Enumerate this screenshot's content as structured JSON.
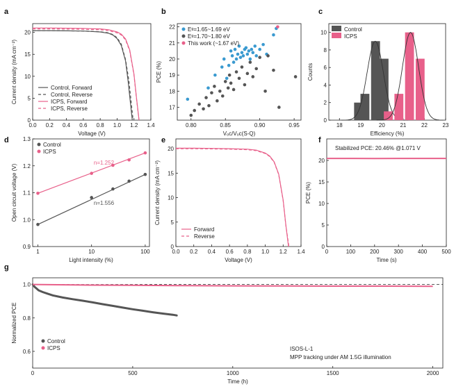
{
  "colors": {
    "control": "#555555",
    "icps": "#e8608a",
    "blue": "#3a9ad0",
    "gauss": "#333333"
  },
  "chart_data": [
    {
      "type": "line",
      "label": "a",
      "xlabel": "Voltage (V)",
      "ylabel": "Current density (mA cm⁻²)",
      "xlim": [
        0,
        1.4
      ],
      "ylim": [
        0,
        22
      ],
      "xticks": [
        "0.0",
        "0.2",
        "0.4",
        "0.6",
        "0.8",
        "1.0",
        "1.2",
        "1.4"
      ],
      "yticks": [
        "0",
        "5",
        "10",
        "15",
        "20"
      ],
      "legend": "bottom-left",
      "series": [
        {
          "name": "Control, Forward",
          "color": "control",
          "dash": false,
          "x": [
            0,
            0.2,
            0.4,
            0.6,
            0.8,
            0.9,
            0.95,
            1.0,
            1.05,
            1.1,
            1.13,
            1.16,
            1.18
          ],
          "y": [
            20.4,
            20.4,
            20.35,
            20.3,
            20.1,
            19.8,
            19.4,
            18.6,
            17.0,
            13.5,
            9.0,
            3.5,
            0
          ]
        },
        {
          "name": "Control, Reverse",
          "color": "control",
          "dash": true,
          "x": [
            0,
            0.2,
            0.4,
            0.6,
            0.8,
            0.9,
            0.95,
            1.0,
            1.05,
            1.1,
            1.14,
            1.17,
            1.19
          ],
          "y": [
            20.4,
            20.4,
            20.35,
            20.3,
            20.15,
            19.9,
            19.5,
            18.8,
            17.3,
            13.8,
            9.0,
            3.5,
            0
          ]
        },
        {
          "name": "ICPS, Forward",
          "color": "icps",
          "dash": false,
          "x": [
            0,
            0.2,
            0.4,
            0.6,
            0.8,
            0.9,
            1.0,
            1.05,
            1.1,
            1.15,
            1.2,
            1.23,
            1.26
          ],
          "y": [
            21.0,
            21.0,
            20.95,
            20.9,
            20.8,
            20.6,
            20.1,
            19.6,
            18.5,
            16.0,
            10.5,
            5.0,
            0
          ]
        },
        {
          "name": "ICPS, Reverse",
          "color": "icps",
          "dash": true,
          "x": [
            0,
            0.2,
            0.4,
            0.6,
            0.8,
            0.9,
            1.0,
            1.05,
            1.1,
            1.15,
            1.2,
            1.23,
            1.26
          ],
          "y": [
            20.8,
            20.8,
            20.75,
            20.7,
            20.6,
            20.4,
            19.9,
            19.4,
            18.3,
            15.8,
            10.3,
            4.8,
            0
          ]
        }
      ]
    },
    {
      "type": "scatter",
      "label": "b",
      "xlabel": "Vₒc/Vₒc(S-Q)",
      "ylabel": "PCE (%)",
      "xlim": [
        0.78,
        0.96
      ],
      "ylim": [
        16.2,
        22.2
      ],
      "xticks": [
        "0.80",
        "0.85",
        "0.90",
        "0.95"
      ],
      "xtickvals": [
        0.8,
        0.85,
        0.9,
        0.95
      ],
      "yticks": [
        "17",
        "18",
        "19",
        "20",
        "21",
        "22"
      ],
      "legend": "top-left",
      "series": [
        {
          "name": "Eᵍ=1.65~1.69 eV",
          "color": "blue",
          "x": [
            0.795,
            0.825,
            0.835,
            0.845,
            0.848,
            0.852,
            0.855,
            0.858,
            0.86,
            0.862,
            0.864,
            0.866,
            0.868,
            0.87,
            0.872,
            0.874,
            0.876,
            0.878,
            0.88,
            0.882,
            0.884,
            0.886,
            0.888,
            0.89,
            0.893,
            0.895,
            0.9,
            0.905,
            0.91,
            0.92,
            0.924
          ],
          "y": [
            17.5,
            18.2,
            19.0,
            19.5,
            20.0,
            18.8,
            19.6,
            20.5,
            20.2,
            19.8,
            20.6,
            20.0,
            20.3,
            20.8,
            20.1,
            20.4,
            20.2,
            20.6,
            20.7,
            20.3,
            20.5,
            20.0,
            20.6,
            20.4,
            20.8,
            20.2,
            20.6,
            20.9,
            20.3,
            21.5,
            21.9
          ]
        },
        {
          "name": "Eᵍ=1.70~1.80 eV",
          "color": "control",
          "x": [
            0.8,
            0.805,
            0.812,
            0.818,
            0.822,
            0.826,
            0.83,
            0.834,
            0.838,
            0.842,
            0.846,
            0.85,
            0.854,
            0.856,
            0.858,
            0.862,
            0.866,
            0.87,
            0.874,
            0.878,
            0.882,
            0.886,
            0.89,
            0.895,
            0.9,
            0.908,
            0.912,
            0.92,
            0.928,
            0.952
          ],
          "y": [
            16.5,
            16.8,
            17.2,
            16.9,
            17.6,
            17.1,
            17.9,
            18.3,
            17.4,
            18.0,
            17.7,
            18.6,
            18.2,
            19.0,
            18.5,
            18.1,
            19.2,
            18.8,
            19.5,
            18.4,
            19.1,
            19.8,
            18.9,
            19.4,
            20.1,
            18.0,
            20.2,
            19.3,
            17.0,
            18.9
          ]
        },
        {
          "name": "This work (~1.67 eV)",
          "color": "icps",
          "x": [
            0.926
          ],
          "y": [
            22.0
          ]
        }
      ]
    },
    {
      "type": "bar",
      "label": "c",
      "xlabel": "Efficiency (%)",
      "ylabel": "Counts",
      "xlim": [
        17.5,
        23
      ],
      "ylim": [
        0,
        11
      ],
      "xticks": [
        "18",
        "19",
        "20",
        "21",
        "22",
        "23"
      ],
      "yticks": [
        "0",
        "2",
        "4",
        "6",
        "8",
        "10"
      ],
      "legend": "top-right",
      "series": [
        {
          "name": "Control",
          "color": "control",
          "x": [
            18.9,
            19.2,
            19.7,
            20.1
          ],
          "values": [
            2,
            3,
            9,
            7
          ]
        },
        {
          "name": "ICPS",
          "color": "icps",
          "x": [
            20.3,
            20.8,
            21.3,
            21.8
          ],
          "values": [
            1,
            3,
            10,
            7
          ]
        }
      ]
    },
    {
      "type": "scatter",
      "label": "d",
      "xlabel": "Light intensity  (%)",
      "ylabel": "Open circuit voltage (V)",
      "xscale": "log",
      "xlim": [
        0.8,
        120
      ],
      "ylim": [
        0.9,
        1.3
      ],
      "xticks": [
        "1",
        "10",
        "100"
      ],
      "xtickvals": [
        1,
        10,
        100
      ],
      "yticks": [
        "0.9",
        "1.0",
        "1.1",
        "1.2",
        "1.3"
      ],
      "legend": "top-left",
      "annotations": [
        {
          "text": "n=1.252",
          "color": "icps"
        },
        {
          "text": "n=1.556",
          "color": "control"
        }
      ],
      "series": [
        {
          "name": "Control",
          "color": "control",
          "x": [
            1,
            10,
            25,
            50,
            100
          ],
          "y": [
            0.982,
            1.082,
            1.114,
            1.143,
            1.168
          ]
        },
        {
          "name": "ICPS",
          "color": "icps",
          "x": [
            1,
            10,
            25,
            50,
            100
          ],
          "y": [
            1.098,
            1.172,
            1.202,
            1.222,
            1.248
          ]
        }
      ]
    },
    {
      "type": "line",
      "label": "e",
      "xlabel": "Voltage (V)",
      "ylabel": "Current density (mA cm⁻²)",
      "xlim": [
        0,
        1.4
      ],
      "ylim": [
        0,
        22
      ],
      "xticks": [
        "0.0",
        "0.2",
        "0.4",
        "0.6",
        "0.8",
        "1.0",
        "1.2",
        "1.4"
      ],
      "yticks": [
        "0",
        "5",
        "10",
        "15",
        "20"
      ],
      "legend": "bottom-left",
      "series": [
        {
          "name": "Forward",
          "color": "icps",
          "dash": false,
          "x": [
            0,
            0.2,
            0.4,
            0.6,
            0.8,
            0.9,
            1.0,
            1.05,
            1.1,
            1.15,
            1.2,
            1.23,
            1.26
          ],
          "y": [
            20.1,
            20.1,
            20.05,
            20.0,
            19.9,
            19.7,
            19.1,
            18.5,
            17.3,
            14.8,
            9.5,
            4.5,
            0
          ]
        },
        {
          "name": "Reverse",
          "color": "icps",
          "dash": true,
          "x": [
            0,
            0.2,
            0.4,
            0.6,
            0.8,
            0.9,
            1.0,
            1.05,
            1.1,
            1.15,
            1.2,
            1.23,
            1.265
          ],
          "y": [
            20.0,
            20.0,
            19.95,
            19.9,
            19.8,
            19.6,
            19.0,
            18.4,
            17.2,
            14.7,
            9.4,
            4.4,
            0
          ]
        }
      ]
    },
    {
      "type": "line",
      "label": "f",
      "xlabel": "Time (s)",
      "ylabel": "PCE (%)",
      "xlim": [
        0,
        500
      ],
      "ylim": [
        0,
        25
      ],
      "xticks": [
        "0",
        "100",
        "200",
        "300",
        "400",
        "500"
      ],
      "yticks": [
        "0",
        "5",
        "10",
        "15",
        "20"
      ],
      "annotation": "Stabilized PCE: 20.46%  @1.071 V",
      "series": [
        {
          "name": "",
          "color": "icps",
          "x": [
            0,
            100,
            200,
            300,
            400,
            500
          ],
          "y": [
            20.46,
            20.46,
            20.45,
            20.46,
            20.46,
            20.46
          ]
        }
      ]
    },
    {
      "type": "line",
      "label": "g",
      "xlabel": "Time (h)",
      "ylabel": "Normalized PCE",
      "xlim": [
        0,
        2050
      ],
      "ylim": [
        0.5,
        1.04
      ],
      "xticks": [
        "0",
        "500",
        "1000",
        "1500",
        "2000"
      ],
      "yticks": [
        "0.6",
        "0.8",
        "1.0"
      ],
      "legend": "bottom-left",
      "note_lines": [
        "ISOS-L-1",
        "MPP tracking under AM 1.5G illumination"
      ],
      "series": [
        {
          "name": "Control",
          "color": "control",
          "x": [
            0,
            10,
            20,
            30,
            50,
            75,
            100,
            150,
            200,
            250,
            300,
            350,
            400,
            450,
            500,
            550,
            600,
            650,
            700,
            720
          ],
          "y": [
            1.0,
            0.985,
            0.975,
            0.965,
            0.955,
            0.945,
            0.935,
            0.922,
            0.912,
            0.903,
            0.893,
            0.882,
            0.872,
            0.862,
            0.852,
            0.843,
            0.834,
            0.826,
            0.819,
            0.815
          ]
        },
        {
          "name": "ICPS",
          "color": "icps",
          "x": [
            0,
            250,
            500,
            750,
            1000,
            1250,
            1500,
            1750,
            2000
          ],
          "y": [
            1.0,
            0.997,
            0.995,
            0.993,
            0.992,
            0.991,
            0.99,
            0.99,
            0.989
          ]
        }
      ]
    }
  ]
}
